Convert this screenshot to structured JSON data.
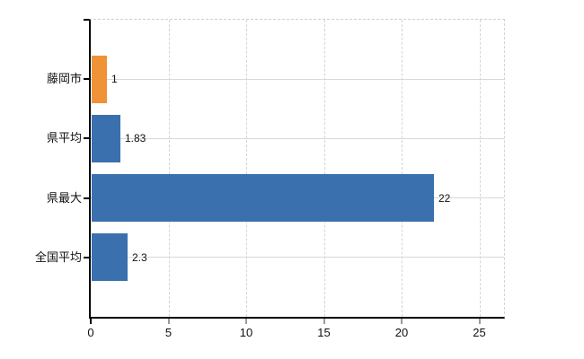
{
  "chart_data": {
    "type": "bar",
    "orientation": "horizontal",
    "title": "",
    "xlabel": "",
    "ylabel": "",
    "categories": [
      "藤岡市",
      "県平均",
      "県最大",
      "全国平均"
    ],
    "values": [
      1,
      1.83,
      22,
      2.3
    ],
    "value_labels": [
      "1",
      "1.83",
      "22",
      "2.3"
    ],
    "bar_colors": [
      "#ef9238",
      "#3b70ae",
      "#3b70ae",
      "#3b70ae"
    ],
    "x_ticks": [
      0,
      5,
      10,
      15,
      20,
      25
    ],
    "x_tick_labels": [
      "0",
      "5",
      "10",
      "15",
      "20",
      "25"
    ],
    "xlim": [
      0,
      26.6
    ],
    "grid": {
      "vertical": "dashed",
      "horizontal": "solid"
    },
    "legend": "none",
    "background": "#ffffff"
  },
  "colors": {
    "bar_blue": "#3b70ae",
    "bar_orange": "#ef9238",
    "axis_line": "#000000",
    "grid_horizontal": "#d4dad4",
    "grid_vertical": "#d8d2da",
    "plot_border_dashed": "#d2ced2",
    "tick_minor": "#9a9a9a",
    "text": "#111111"
  }
}
